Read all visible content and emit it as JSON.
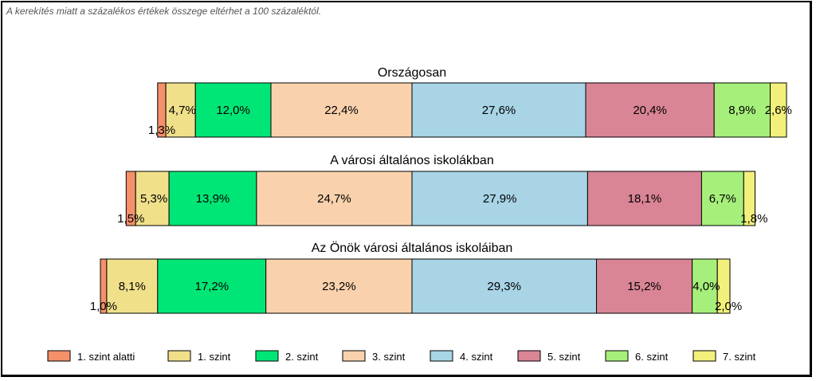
{
  "note": "A kerekítés miatt a  százalékos értékek összege eltérhet a 100 százaléktól.",
  "chart_data": {
    "type": "bar",
    "stacked": true,
    "orientation": "horizontal",
    "centered": true,
    "legend_position": "bottom",
    "series": [
      {
        "name": "1. szint alatti",
        "color": "#f4906a"
      },
      {
        "name": "1. szint",
        "color": "#f0e08a"
      },
      {
        "name": "2. szint",
        "color": "#00e676"
      },
      {
        "name": "3. szint",
        "color": "#f9d2ad"
      },
      {
        "name": "4. szint",
        "color": "#a8d4e6"
      },
      {
        "name": "5. szint",
        "color": "#d98596"
      },
      {
        "name": "6. szint",
        "color": "#a6ef7b"
      },
      {
        "name": "7. szint",
        "color": "#f2f07a"
      }
    ],
    "bars": [
      {
        "title": "Országosan",
        "values": [
          1.3,
          4.7,
          12.0,
          22.4,
          27.6,
          20.4,
          8.9,
          2.6
        ],
        "labels": [
          "1,3%",
          "4,7%",
          "12,0%",
          "22,4%",
          "27,6%",
          "20,4%",
          "8,9%",
          "2,6%"
        ]
      },
      {
        "title": "A városi általános iskolákban",
        "values": [
          1.5,
          5.3,
          13.9,
          24.7,
          27.9,
          18.1,
          6.7,
          1.8
        ],
        "labels": [
          "1,5%",
          "5,3%",
          "13,9%",
          "24,7%",
          "27,9%",
          "18,1%",
          "6,7%",
          "1,8%"
        ]
      },
      {
        "title": "Az Önök városi általános iskoláiban",
        "values": [
          1.0,
          8.1,
          17.2,
          23.2,
          29.3,
          15.2,
          4.0,
          2.0
        ],
        "labels": [
          "1,0%",
          "8,1%",
          "17,2%",
          "23,2%",
          "29,3%",
          "15,2%",
          "4,0%",
          "2,0%"
        ]
      }
    ]
  }
}
